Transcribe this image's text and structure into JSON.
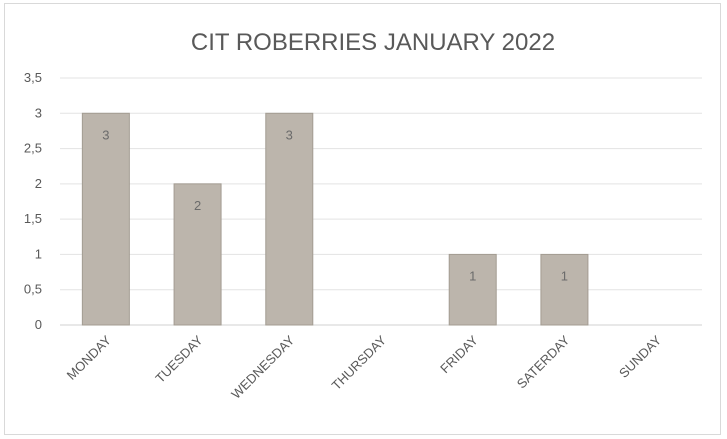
{
  "chart_data": {
    "type": "bar",
    "title": "CIT ROBERRIES JANUARY 2022",
    "categories": [
      "MONDAY",
      "TUESDAY",
      "WEDNESDAY",
      "THURSDAY",
      "FRIDAY",
      "SATERDAY",
      "SUNDAY"
    ],
    "values": [
      3,
      2,
      3,
      0,
      1,
      1,
      0
    ],
    "data_labels": [
      "3",
      "2",
      "3",
      "",
      "1",
      "1",
      ""
    ],
    "ylim": [
      0,
      3.5
    ],
    "y_ticks": [
      0,
      0.5,
      1,
      1.5,
      2,
      2.5,
      3,
      3.5
    ],
    "y_tick_labels": [
      "0",
      "0,5",
      "1",
      "1,5",
      "2",
      "2,5",
      "3",
      "3,5"
    ],
    "xlabel": "",
    "ylabel": "",
    "grid": true,
    "colors": {
      "bar_fill": "#bcb5ac",
      "bar_stroke": "#a39c92",
      "grid": "#e3e3e3",
      "text": "#595959"
    }
  }
}
